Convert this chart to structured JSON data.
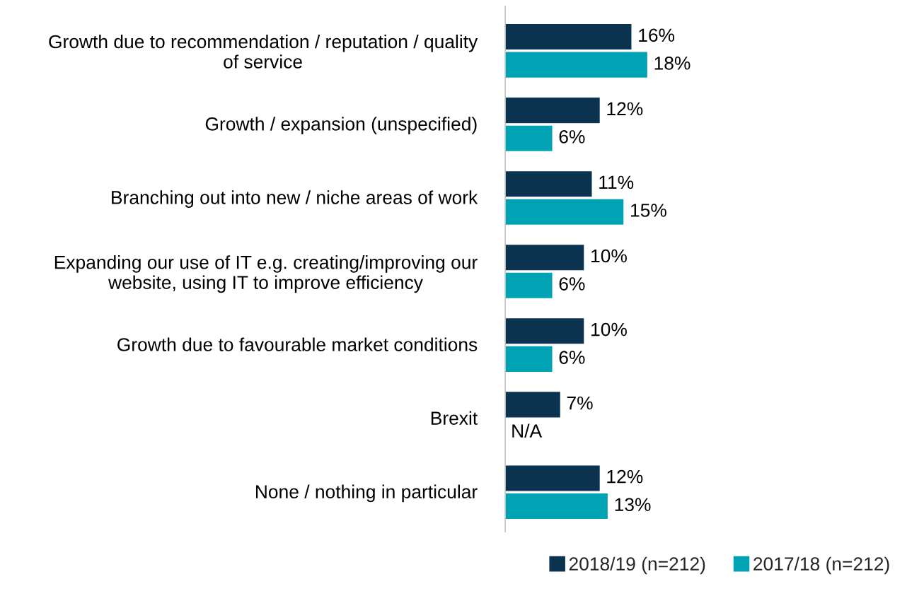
{
  "chart_data": {
    "type": "bar",
    "orientation": "horizontal",
    "categories": [
      "Growth due to recommendation / reputation / quality of service",
      "Growth / expansion (unspecified)",
      "Branching out into new / niche areas of work",
      "Expanding our use of IT e.g. creating/improving our website, using IT to improve efficiency",
      "Growth due to favourable market conditions",
      "Brexit",
      "None / nothing in particular"
    ],
    "series": [
      {
        "name": "2018/19 (n=212)",
        "color": "#0b3350",
        "values": [
          16,
          12,
          11,
          10,
          10,
          7,
          12
        ],
        "value_labels": [
          "16%",
          "12%",
          "11%",
          "10%",
          "10%",
          "7%",
          "12%"
        ]
      },
      {
        "name": "2017/18 (n=212)",
        "color": "#00a3b3",
        "values": [
          18,
          6,
          15,
          6,
          6,
          null,
          13
        ],
        "value_labels": [
          "18%",
          "6%",
          "15%",
          "6%",
          "6%",
          "N/A",
          "13%"
        ]
      }
    ],
    "legend": "bottom right",
    "grid": false
  }
}
